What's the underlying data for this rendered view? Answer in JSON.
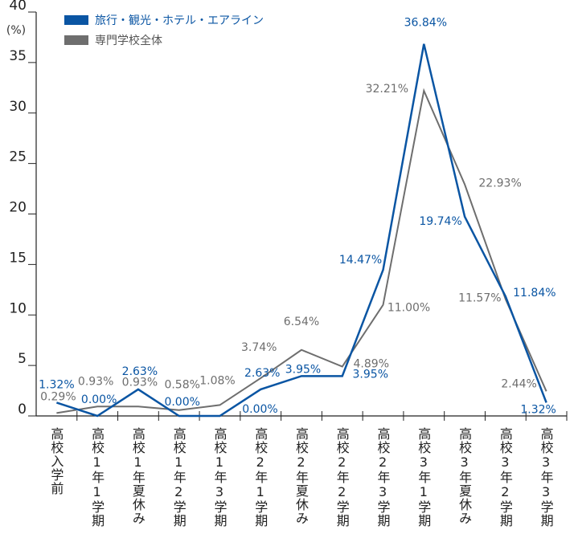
{
  "chart_data": {
    "type": "line",
    "y_unit_label": "(%)",
    "categories": [
      "高校入学前",
      "高校1年1学期",
      "高校1年夏休み",
      "高校1年2学期",
      "高校1年3学期",
      "高校2年1学期",
      "高校2年夏休み",
      "高校2年2学期",
      "高校2年3学期",
      "高校3年1学期",
      "高校3年夏休み",
      "高校3年2学期",
      "高校3年3学期"
    ],
    "series": [
      {
        "name": "旅行・観光・ホテル・エアライン",
        "color": "#0a55a3",
        "values": [
          1.32,
          0.0,
          2.63,
          0.0,
          0.0,
          2.63,
          3.95,
          3.95,
          14.47,
          36.84,
          19.74,
          11.84,
          1.32
        ],
        "value_labels": [
          "1.32%",
          "0.00%",
          "2.63%",
          "0.00%",
          "0.00%",
          "2.63%",
          "3.95%",
          "3.95%",
          "14.47%",
          "36.84%",
          "19.74%",
          "11.84%",
          "1.32%"
        ]
      },
      {
        "name": "専門学校全体",
        "color": "#6e6e6e",
        "values": [
          0.29,
          0.93,
          0.93,
          0.58,
          1.08,
          3.74,
          6.54,
          4.89,
          11.0,
          32.21,
          22.93,
          11.57,
          2.44
        ],
        "value_labels": [
          "0.29%",
          "0.93%",
          "0.93%",
          "0.58%",
          "1.08%",
          "3.74%",
          "6.54%",
          "4.89%",
          "11.00%",
          "32.21%",
          "22.93%",
          "11.57%",
          "2.44%"
        ]
      }
    ],
    "ylim": [
      0,
      40
    ],
    "yticks": [
      0,
      5,
      10,
      15,
      20,
      25,
      30,
      35,
      40
    ],
    "grid": false
  }
}
